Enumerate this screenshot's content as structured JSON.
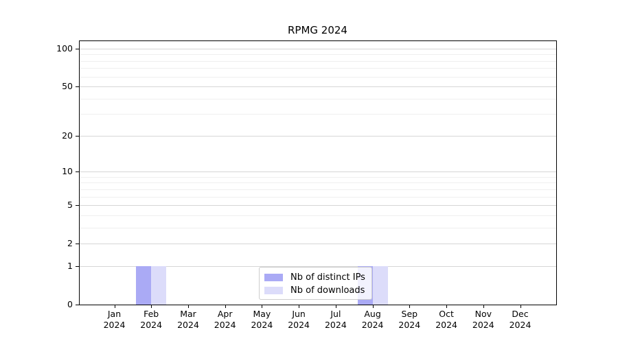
{
  "chart_data": {
    "type": "bar",
    "title": "RPMG 2024",
    "categories": [
      "Jan",
      "Feb",
      "Mar",
      "Apr",
      "May",
      "Jun",
      "Jul",
      "Aug",
      "Sep",
      "Oct",
      "Nov",
      "Dec"
    ],
    "category_year": "2024",
    "series": [
      {
        "name": "Nb of distinct IPs",
        "color": "#aaaaf5",
        "values": [
          0,
          1,
          0,
          0,
          0,
          0,
          0,
          1,
          0,
          0,
          0,
          0
        ]
      },
      {
        "name": "Nb of downloads",
        "color": "#dcdcfa",
        "values": [
          0,
          1,
          0,
          0,
          0,
          0,
          0,
          1,
          0,
          0,
          0,
          0
        ]
      }
    ],
    "xlabel": "",
    "ylabel": "",
    "yscale": "log1p",
    "ylim": [
      0,
      114.6
    ],
    "yticks_major": [
      0,
      1,
      2,
      5,
      10,
      20,
      50,
      100
    ],
    "yticks_minor": [
      3,
      4,
      6,
      7,
      8,
      9,
      30,
      40,
      60,
      70,
      80,
      90
    ],
    "grid": true,
    "legend_position": "lower center",
    "colors": {
      "major_grid": "#d6d6d6",
      "minor_grid": "#efefef",
      "axis": "#000000",
      "legend_border": "#cccccc",
      "background": "#ffffff"
    }
  }
}
